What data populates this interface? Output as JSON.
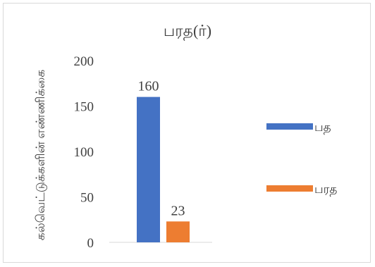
{
  "chart_data": {
    "type": "bar",
    "title": "பரத(ர்)",
    "ylabel": "கல்வெட்டுக்களின் எண்ணிக்கை",
    "xlabel": "",
    "categories": [
      ""
    ],
    "series": [
      {
        "name": "பத",
        "values": [
          160
        ],
        "color": "#4472c4"
      },
      {
        "name": "பரத",
        "values": [
          23
        ],
        "color": "#ed7d31"
      }
    ],
    "ylim": [
      0,
      200
    ],
    "yticks": [
      "0",
      "50",
      "100",
      "150",
      "200"
    ],
    "ytick_values": [
      0,
      50,
      100,
      150,
      200
    ],
    "data_labels": [
      "160",
      "23"
    ],
    "grid": false,
    "legend_position": "right"
  }
}
